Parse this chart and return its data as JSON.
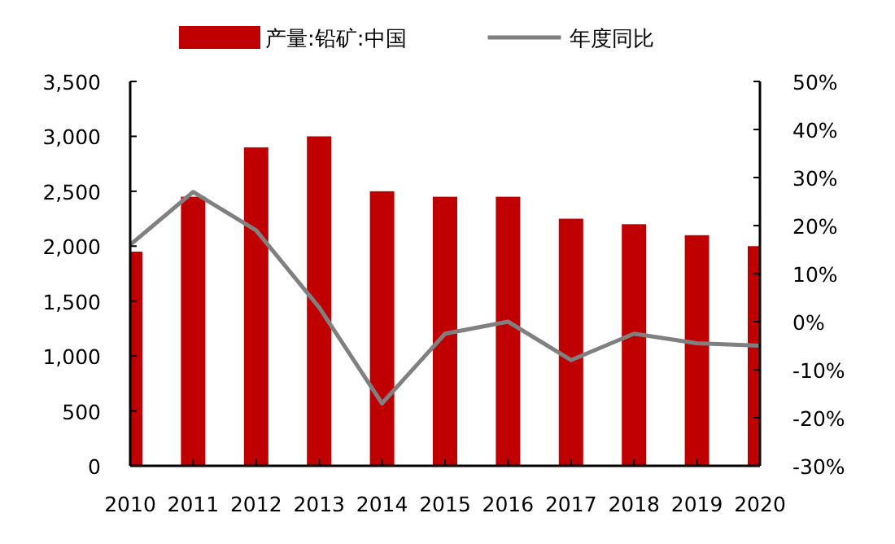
{
  "chart_data": {
    "type": "bar",
    "categories": [
      "2010",
      "2011",
      "2012",
      "2013",
      "2014",
      "2015",
      "2016",
      "2017",
      "2018",
      "2019",
      "2020"
    ],
    "series": [
      {
        "name": "产量:铅矿:中国",
        "color": "#c00000",
        "values": [
          1950,
          2450,
          2900,
          3000,
          2500,
          2450,
          2450,
          2250,
          2200,
          2100,
          2000
        ]
      },
      {
        "name": "年度同比",
        "type": "line",
        "axis": "y2",
        "color": "#808080",
        "values": [
          16,
          27,
          19,
          3,
          -17,
          -2.5,
          0,
          -8,
          -2.5,
          -4.5,
          -5
        ]
      }
    ],
    "ylim": [
      0,
      3500
    ],
    "yticks": [
      {
        "value": 0,
        "label": "0"
      },
      {
        "value": 500,
        "label": "500"
      },
      {
        "value": 1000,
        "label": "1,000"
      },
      {
        "value": 1500,
        "label": "1,500"
      },
      {
        "value": 2000,
        "label": "2,000"
      },
      {
        "value": 2500,
        "label": "2,500"
      },
      {
        "value": 3000,
        "label": "3,000"
      },
      {
        "value": 3500,
        "label": "3,500"
      }
    ],
    "y2lim": [
      -30,
      50
    ],
    "y2ticks": [
      {
        "value": -30,
        "label": "-30%"
      },
      {
        "value": -20,
        "label": "-20%"
      },
      {
        "value": -10,
        "label": "-10%"
      },
      {
        "value": 0,
        "label": "0%"
      },
      {
        "value": 10,
        "label": "10%"
      },
      {
        "value": 20,
        "label": "20%"
      },
      {
        "value": 30,
        "label": "30%"
      },
      {
        "value": 40,
        "label": "40%"
      },
      {
        "value": 50,
        "label": "50%"
      }
    ],
    "legend": "top",
    "marker": "none",
    "line_style": "solid",
    "grid": false
  }
}
